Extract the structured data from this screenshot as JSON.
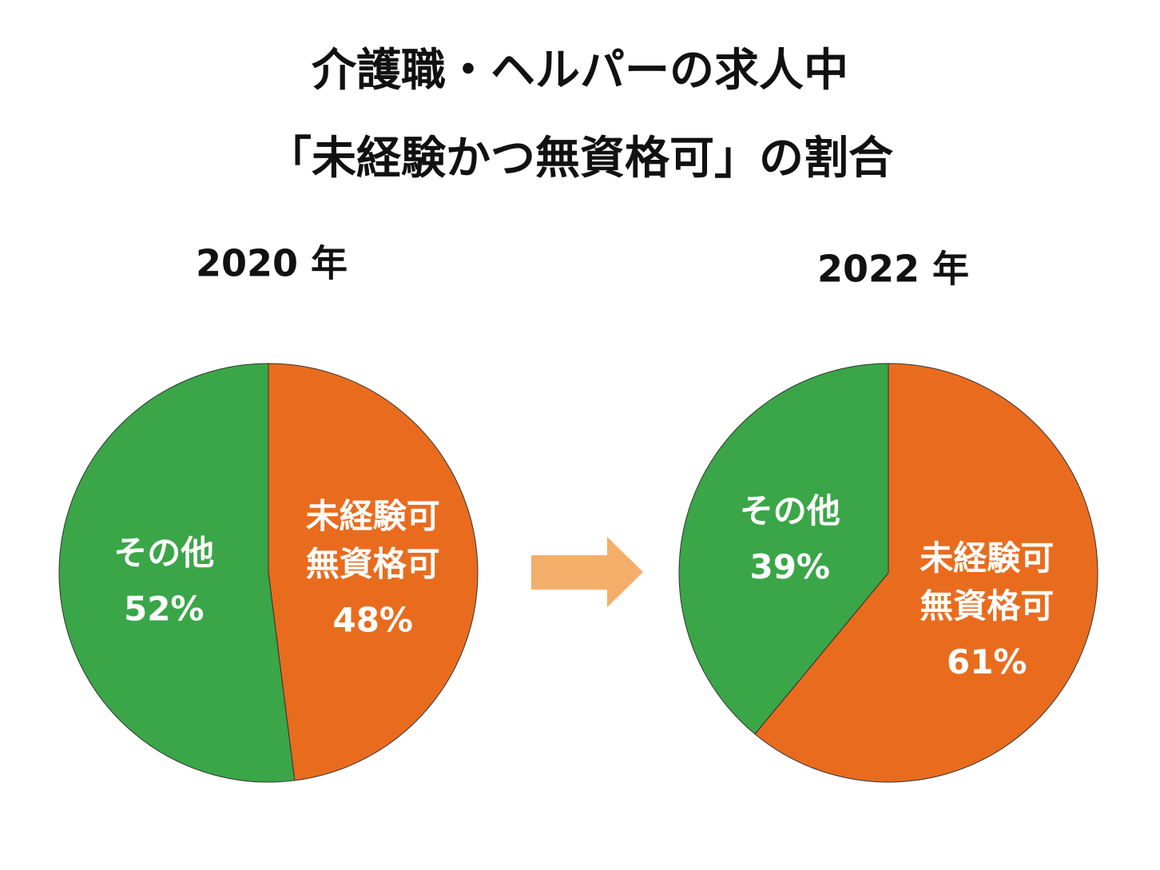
{
  "title": {
    "line1": "介護職・ヘルパーの求人中",
    "line2": "「未経験かつ無資格可」の割合"
  },
  "chart_data": [
    {
      "type": "pie",
      "title": "2020 年",
      "categories": [
        [
          "未経験可",
          "無資格可"
        ],
        [
          "その他"
        ]
      ],
      "values": [
        48,
        52
      ],
      "value_labels": [
        "48%",
        "52%"
      ],
      "colors": [
        "#e96c1e",
        "#3aa648"
      ]
    },
    {
      "type": "pie",
      "title": "2022 年",
      "categories": [
        [
          "未経験可",
          "無資格可"
        ],
        [
          "その他"
        ]
      ],
      "values": [
        61,
        39
      ],
      "value_labels": [
        "61%",
        "39%"
      ],
      "colors": [
        "#e96c1e",
        "#3aa648"
      ]
    }
  ]
}
